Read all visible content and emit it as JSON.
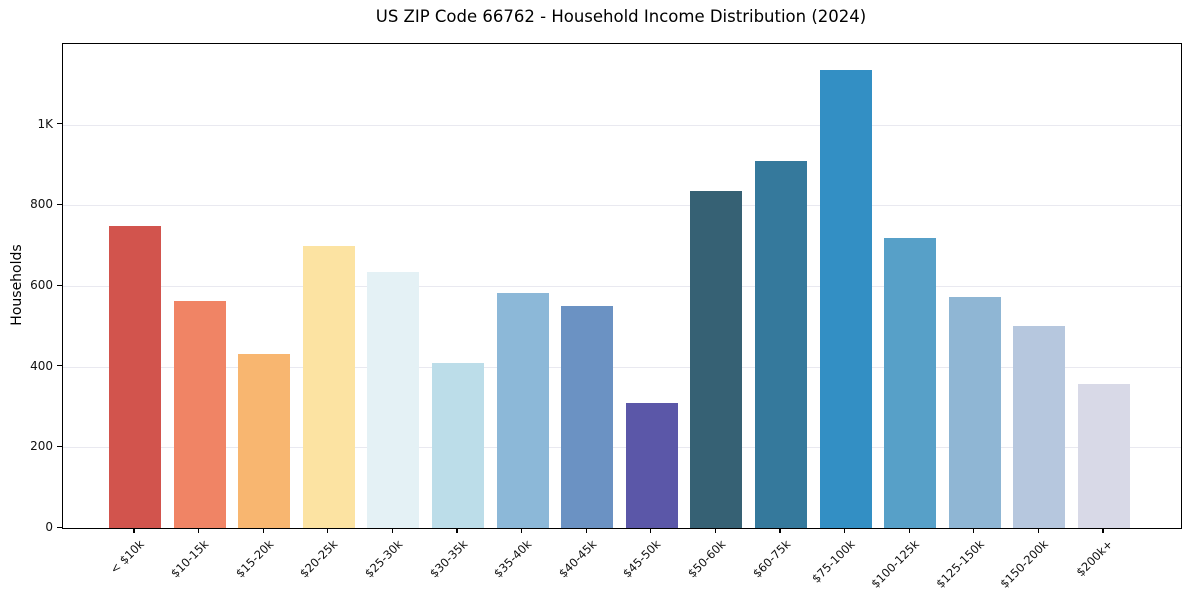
{
  "title": "US ZIP Code 66762 - Household Income Distribution (2024)",
  "chart_data": {
    "type": "bar",
    "title": "US ZIP Code 66762 - Household Income Distribution (2024)",
    "xlabel": "",
    "ylabel": "Households",
    "categories": [
      "< $10k",
      "$10-15k",
      "$15-20k",
      "$20-25k",
      "$25-30k",
      "$30-35k",
      "$35-40k",
      "$40-45k",
      "$45-50k",
      "$50-60k",
      "$60-75k",
      "$75-100k",
      "$100-125k",
      "$125-150k",
      "$150-200k",
      "$200k+"
    ],
    "values": [
      750,
      563,
      432,
      700,
      635,
      410,
      583,
      550,
      310,
      835,
      910,
      1135,
      720,
      573,
      500,
      356
    ],
    "bar_colors": [
      "#d2544d",
      "#f08465",
      "#f8b670",
      "#fce3a2",
      "#e4f1f5",
      "#bcdde9",
      "#8cb8d8",
      "#6b92c3",
      "#5b57a8",
      "#366174",
      "#35799c",
      "#338fc4",
      "#57a0c8",
      "#8fb6d4",
      "#b6c7de",
      "#d8d9e7"
    ],
    "ylim": [
      0,
      1200
    ],
    "yticks": [
      {
        "value": 0,
        "label": "0"
      },
      {
        "value": 200,
        "label": "200"
      },
      {
        "value": 400,
        "label": "400"
      },
      {
        "value": 600,
        "label": "600"
      },
      {
        "value": 800,
        "label": "800"
      },
      {
        "value": 1000,
        "label": "1K"
      }
    ],
    "grid": "horizontal gridlines at y ticks",
    "legend": "none"
  },
  "colors": {
    "background": "#ffffff",
    "spine": "#000000",
    "gridline": "#e9e9f0",
    "tick_label": "#111111"
  }
}
